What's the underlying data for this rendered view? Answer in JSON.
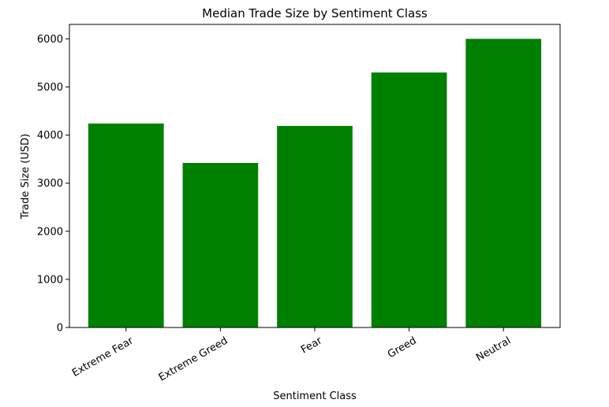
{
  "chart_data": {
    "type": "bar",
    "title": "Median Trade Size by Sentiment Class",
    "xlabel": "Sentiment Class",
    "ylabel": "Trade Size (USD)",
    "categories": [
      "Extreme Fear",
      "Extreme Greed",
      "Fear",
      "Greed",
      "Neutral"
    ],
    "values": [
      4240,
      3420,
      4190,
      5300,
      6000
    ],
    "ylim": [
      0,
      6300
    ],
    "yticks": [
      0,
      1000,
      2000,
      3000,
      4000,
      5000,
      6000
    ],
    "bar_color": "#008000",
    "grid": false,
    "legend": "none",
    "xtick_rotation_deg": 30
  }
}
